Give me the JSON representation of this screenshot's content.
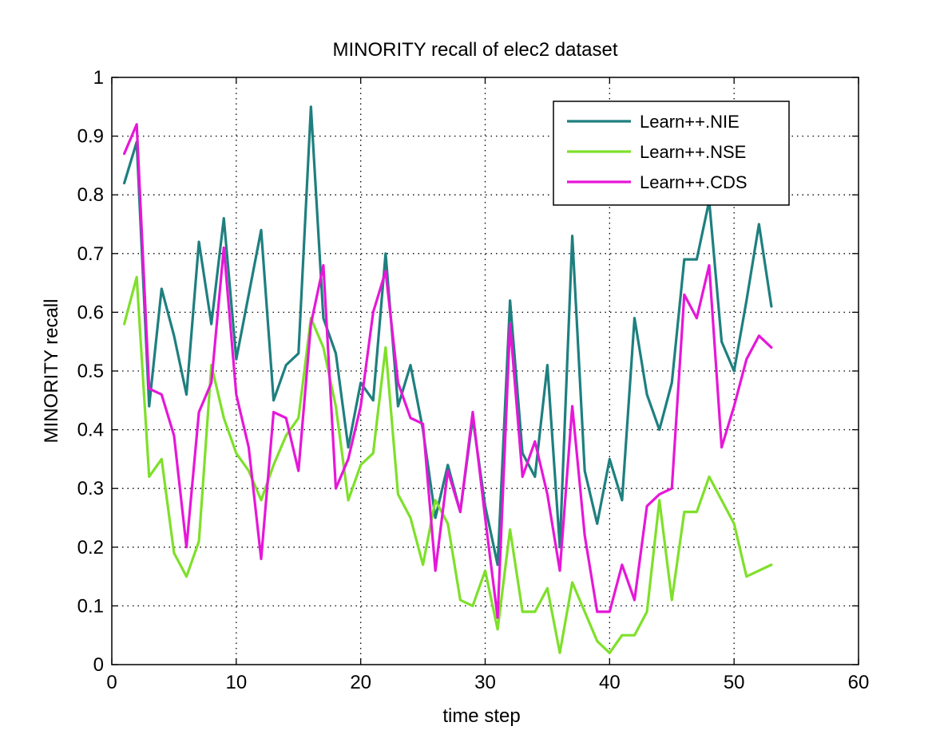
{
  "chart_data": {
    "type": "line",
    "title": "MINORITY recall of elec2 dataset",
    "xlabel": "time step",
    "ylabel": "MINORITY recall",
    "xlim": [
      0,
      60
    ],
    "ylim": [
      0,
      1
    ],
    "xticks": [
      0,
      10,
      20,
      30,
      40,
      50,
      60
    ],
    "yticks": [
      0,
      0.1,
      0.2,
      0.3,
      0.4,
      0.5,
      0.6,
      0.7,
      0.8,
      0.9,
      1
    ],
    "grid": true,
    "legend_position": "top-right",
    "x": [
      1,
      2,
      3,
      4,
      5,
      6,
      7,
      8,
      9,
      10,
      11,
      12,
      13,
      14,
      15,
      16,
      17,
      18,
      19,
      20,
      21,
      22,
      23,
      24,
      25,
      26,
      27,
      28,
      29,
      30,
      31,
      32,
      33,
      34,
      35,
      36,
      37,
      38,
      39,
      40,
      41,
      42,
      43,
      44,
      45,
      46,
      47,
      48,
      49,
      50,
      51,
      52,
      53
    ],
    "series": [
      {
        "name": "Learn++.NIE",
        "color": "#1f7f7f",
        "values": [
          0.82,
          0.89,
          0.44,
          0.64,
          0.56,
          0.46,
          0.72,
          0.58,
          0.76,
          0.52,
          0.63,
          0.74,
          0.45,
          0.51,
          0.53,
          0.95,
          0.59,
          0.53,
          0.37,
          0.48,
          0.45,
          0.7,
          0.44,
          0.51,
          0.4,
          0.25,
          0.34,
          0.26,
          0.42,
          0.27,
          0.17,
          0.62,
          0.36,
          0.32,
          0.51,
          0.2,
          0.73,
          0.33,
          0.24,
          0.35,
          0.28,
          0.59,
          0.46,
          0.4,
          0.48,
          0.69,
          0.69,
          0.79,
          0.55,
          0.5,
          0.62,
          0.75,
          0.61
        ]
      },
      {
        "name": "Learn++.NSE",
        "color": "#7ee02a",
        "values": [
          0.58,
          0.66,
          0.32,
          0.35,
          0.19,
          0.15,
          0.21,
          0.51,
          0.42,
          0.36,
          0.33,
          0.28,
          0.34,
          0.39,
          0.42,
          0.59,
          0.54,
          0.44,
          0.28,
          0.34,
          0.36,
          0.54,
          0.29,
          0.25,
          0.17,
          0.28,
          0.24,
          0.11,
          0.1,
          0.16,
          0.06,
          0.23,
          0.09,
          0.09,
          0.13,
          0.02,
          0.14,
          0.09,
          0.04,
          0.02,
          0.05,
          0.05,
          0.09,
          0.28,
          0.11,
          0.26,
          0.26,
          0.32,
          0.28,
          0.24,
          0.15,
          0.16,
          0.17
        ]
      },
      {
        "name": "Learn++.CDS",
        "color": "#e617d8",
        "values": [
          0.87,
          0.92,
          0.47,
          0.46,
          0.39,
          0.2,
          0.43,
          0.48,
          0.71,
          0.46,
          0.37,
          0.18,
          0.43,
          0.42,
          0.33,
          0.58,
          0.68,
          0.3,
          0.35,
          0.44,
          0.6,
          0.67,
          0.48,
          0.42,
          0.41,
          0.16,
          0.33,
          0.26,
          0.43,
          0.25,
          0.08,
          0.58,
          0.32,
          0.38,
          0.29,
          0.16,
          0.44,
          0.22,
          0.09,
          0.09,
          0.17,
          0.11,
          0.27,
          0.29,
          0.3,
          0.63,
          0.59,
          0.68,
          0.37,
          0.44,
          0.52,
          0.56,
          0.54
        ]
      }
    ]
  }
}
